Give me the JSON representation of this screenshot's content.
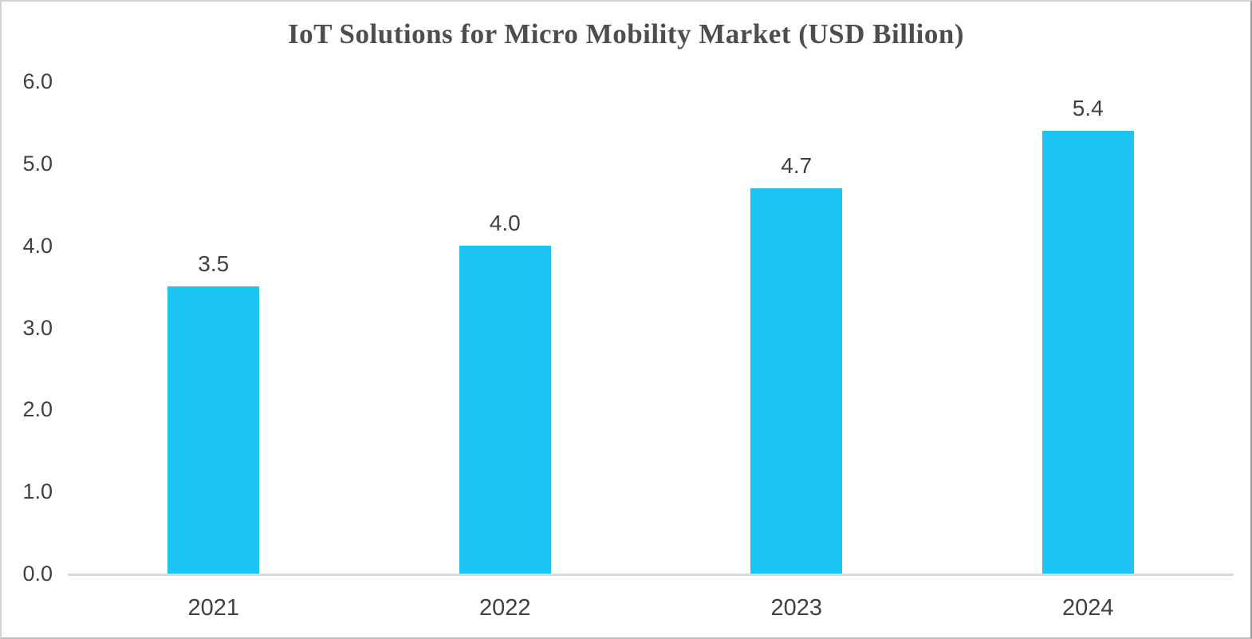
{
  "chart_data": {
    "type": "bar",
    "title": "IoT Solutions for Micro Mobility Market (USD Billion)",
    "categories": [
      "2021",
      "2022",
      "2023",
      "2024"
    ],
    "values": [
      3.5,
      4.0,
      4.7,
      5.4
    ],
    "data_labels": [
      "3.5",
      "4.0",
      "4.7",
      "5.4"
    ],
    "xlabel": "",
    "ylabel": "",
    "ylim": [
      0,
      6
    ],
    "ytick_step": 1.0,
    "ytick_labels": [
      "0.0",
      "1.0",
      "2.0",
      "3.0",
      "4.0",
      "5.0",
      "6.0"
    ],
    "grid": false,
    "legend_position": "none",
    "bar_color": "#1dc4f3",
    "axis_line_color": "#d9d9d9",
    "tick_text_color": "#404040",
    "title_color": "#4d4d4d"
  }
}
